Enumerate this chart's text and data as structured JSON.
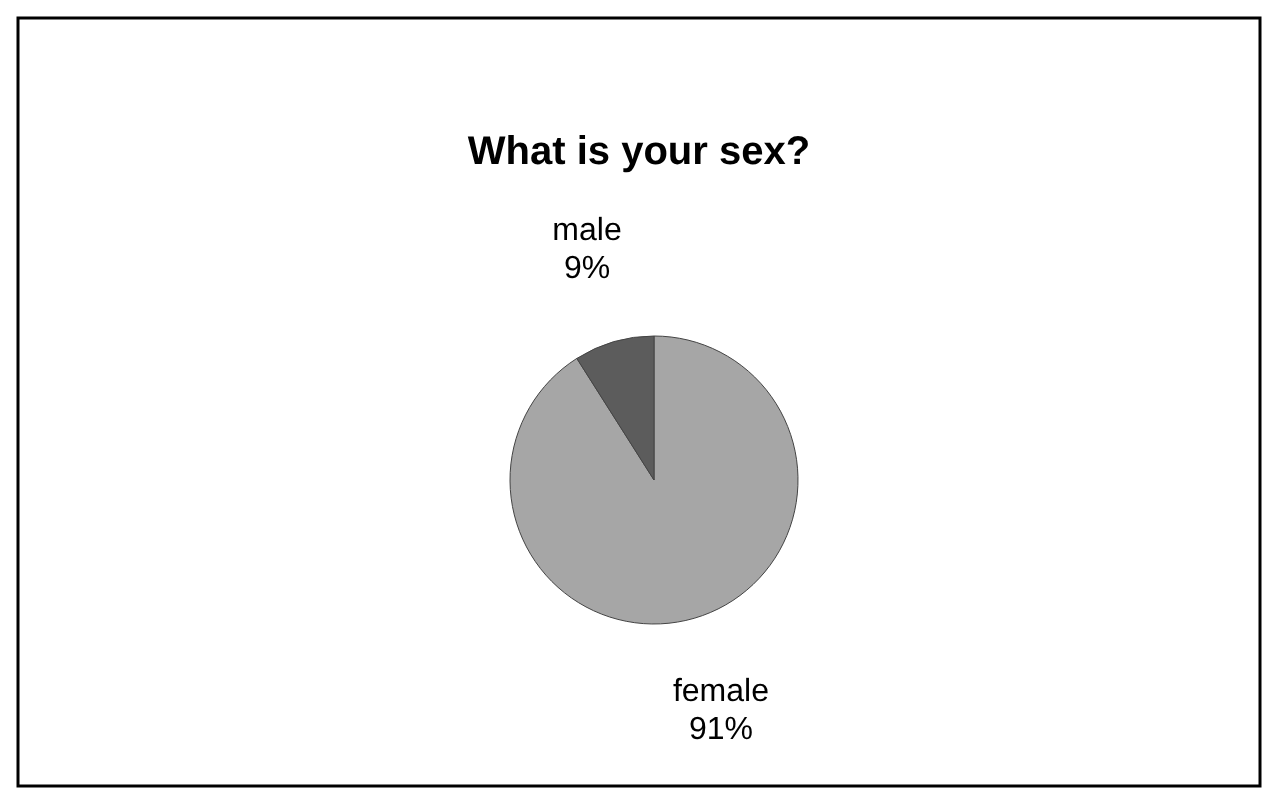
{
  "chart_data": {
    "type": "pie",
    "title": "What is your sex?",
    "categories": [
      "female",
      "male"
    ],
    "values": [
      91,
      9
    ],
    "value_labels": [
      "91%",
      "9%"
    ],
    "colors": [
      "#a6a6a6",
      "#5c5c5c"
    ],
    "legend": false
  }
}
